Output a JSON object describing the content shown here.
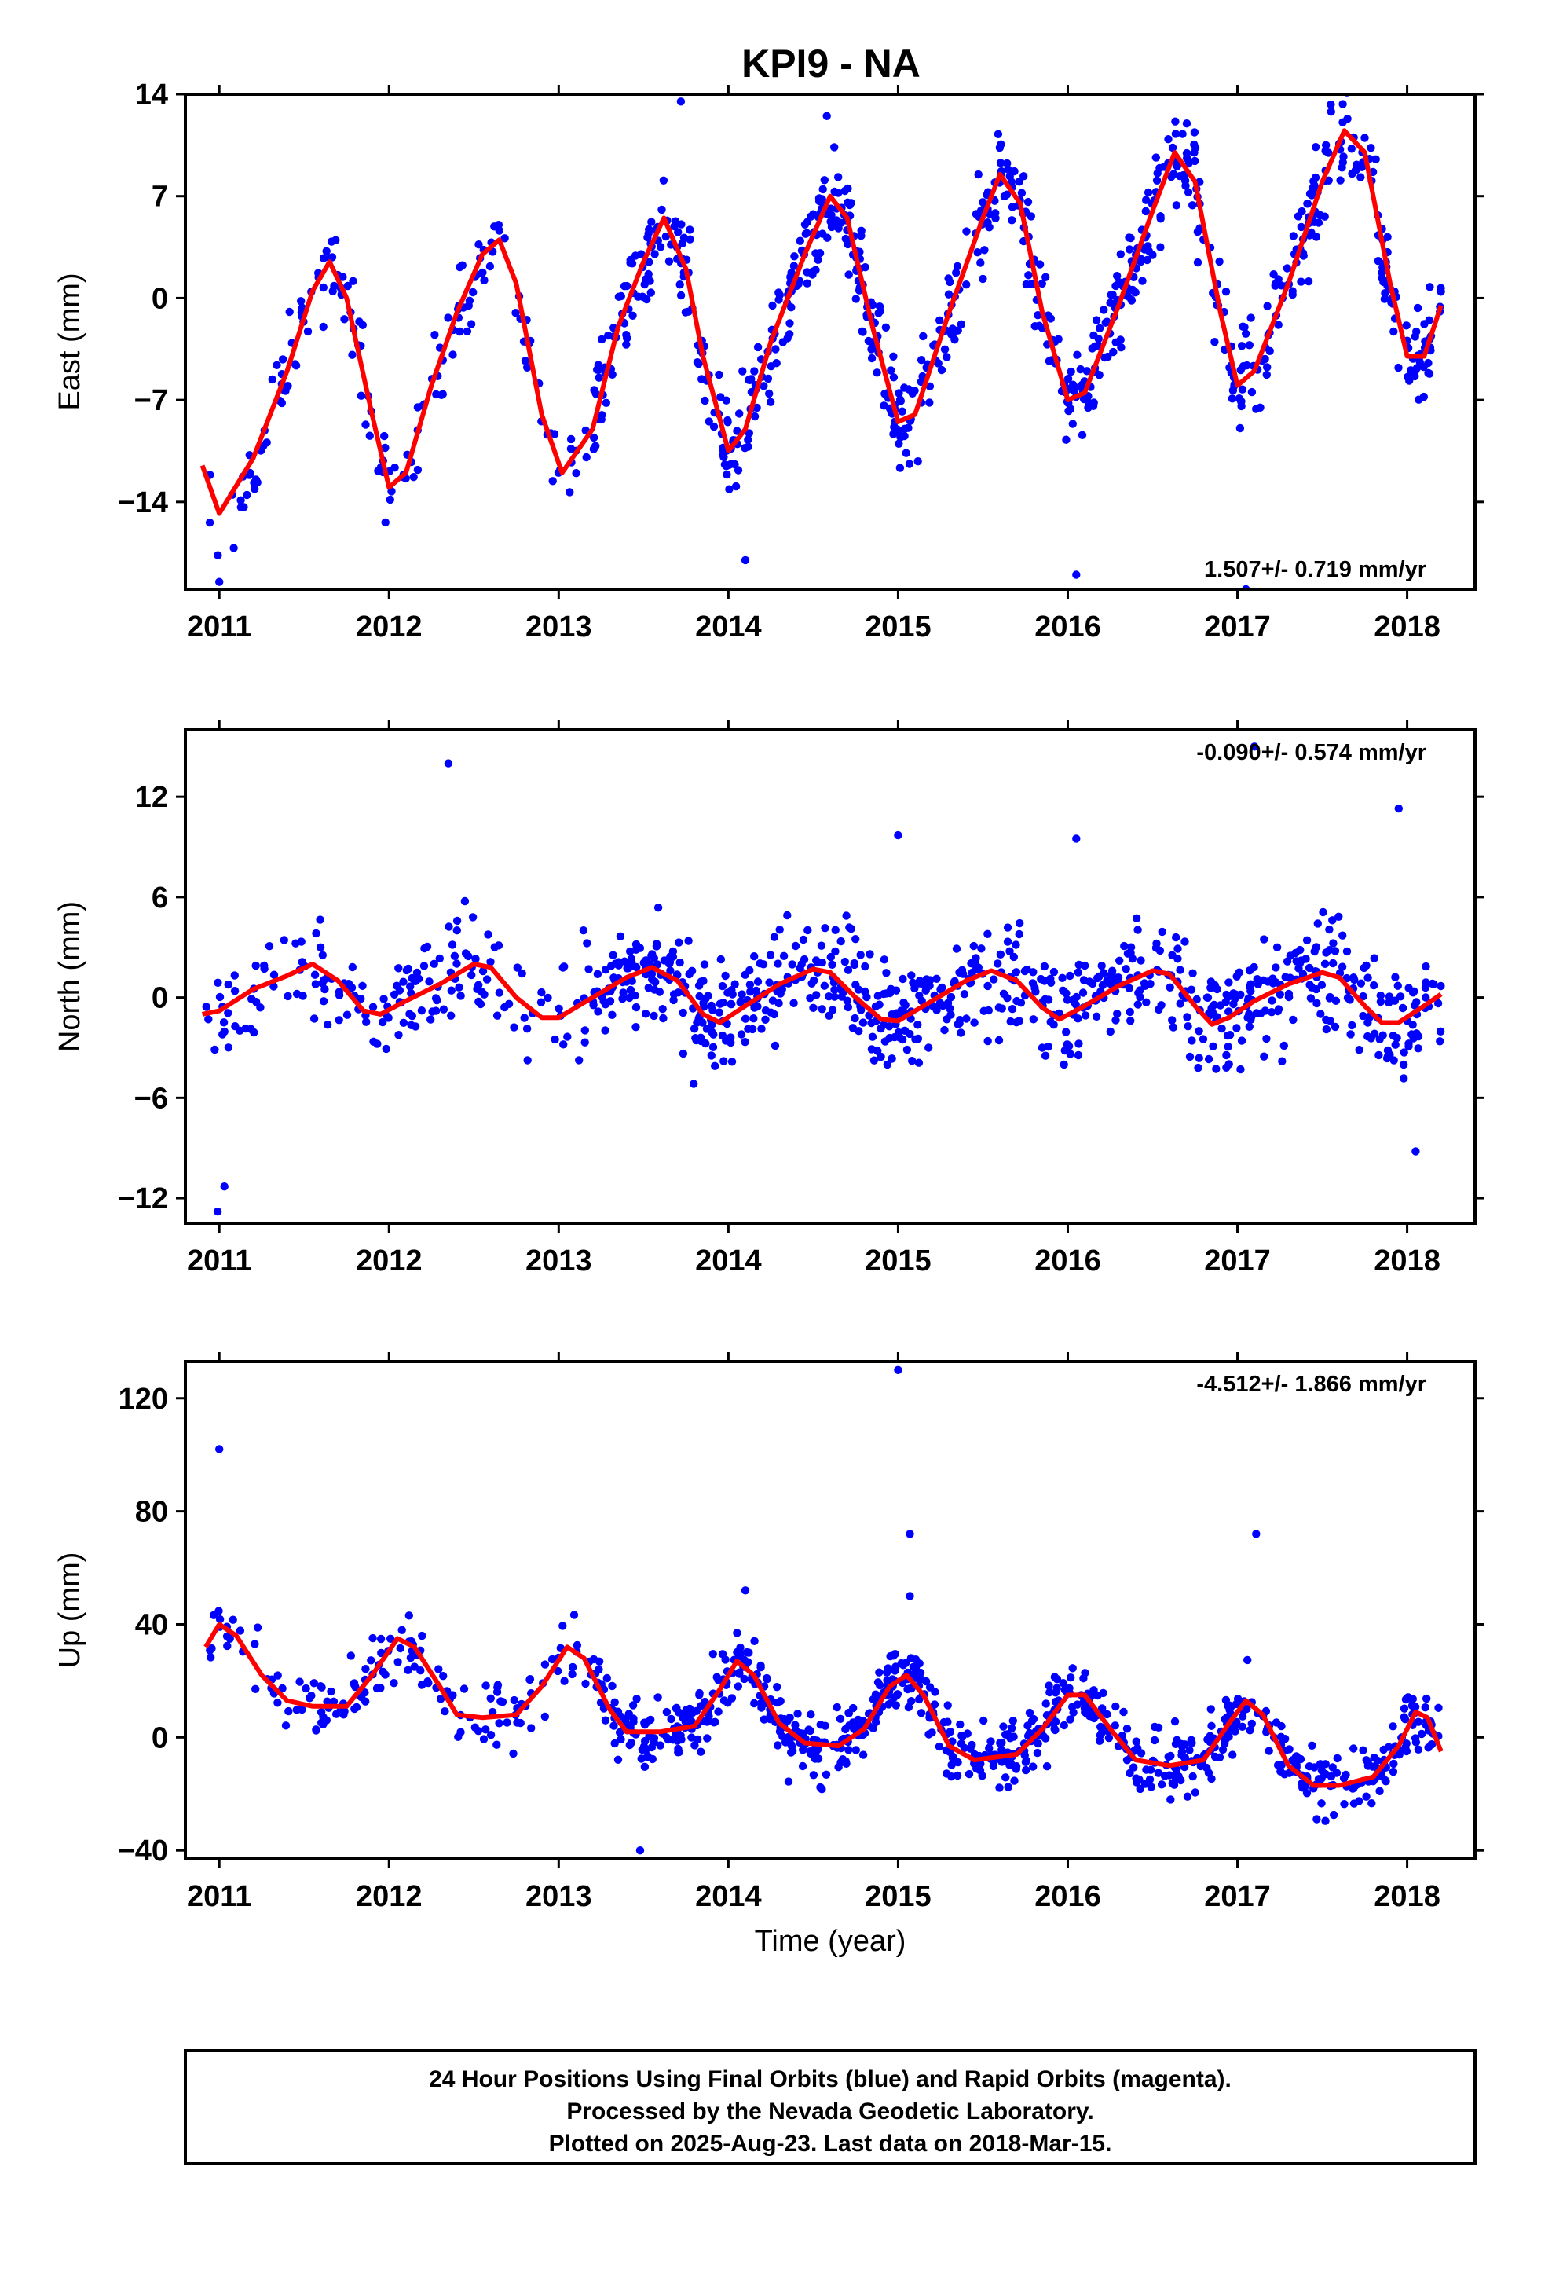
{
  "title": "KPI9 - NA",
  "caption": {
    "line1": "24 Hour Positions Using Final Orbits (blue) and Rapid Orbits (magenta).",
    "line2": "Processed by the Nevada Geodetic Laboratory.",
    "line3": "Plotted on 2025-Aug-23. Last data on 2018-Mar-15."
  },
  "colors": {
    "points": "#0000ff",
    "fit": "#ff0000",
    "frame": "#000000"
  },
  "chart_data": [
    {
      "type": "scatter",
      "component": "East",
      "ylabel": "East (mm)",
      "xlabel": "",
      "xlim": [
        2010.8,
        2018.4
      ],
      "ylim": [
        -20,
        14
      ],
      "xticks": [
        2011,
        2012,
        2013,
        2014,
        2015,
        2016,
        2017,
        2018
      ],
      "yticks": [
        -14,
        -7,
        0,
        7,
        14
      ],
      "ytick_labels": [
        "−14",
        "−7",
        "0",
        "7",
        "14"
      ],
      "rate_label": "1.507+/- 0.719 mm/yr",
      "rate_position": "bottom-right",
      "grid": false,
      "fit_curve": [
        [
          2010.9,
          -11.5
        ],
        [
          2011.0,
          -14.8
        ],
        [
          2011.2,
          -11
        ],
        [
          2011.4,
          -5
        ],
        [
          2011.55,
          0.5
        ],
        [
          2011.65,
          2.5
        ],
        [
          2011.75,
          0
        ],
        [
          2011.9,
          -8
        ],
        [
          2012.0,
          -13
        ],
        [
          2012.1,
          -12
        ],
        [
          2012.25,
          -6
        ],
        [
          2012.4,
          -1
        ],
        [
          2012.55,
          3
        ],
        [
          2012.65,
          4
        ],
        [
          2012.75,
          1
        ],
        [
          2012.9,
          -8
        ],
        [
          2013.02,
          -12
        ],
        [
          2013.2,
          -9
        ],
        [
          2013.35,
          -2
        ],
        [
          2013.5,
          2.5
        ],
        [
          2013.62,
          5.5
        ],
        [
          2013.75,
          2
        ],
        [
          2013.85,
          -4
        ],
        [
          2014.0,
          -10.5
        ],
        [
          2014.1,
          -9
        ],
        [
          2014.25,
          -3
        ],
        [
          2014.45,
          3
        ],
        [
          2014.6,
          7
        ],
        [
          2014.7,
          5.5
        ],
        [
          2014.85,
          -2
        ],
        [
          2015.0,
          -8.5
        ],
        [
          2015.1,
          -8
        ],
        [
          2015.3,
          -1
        ],
        [
          2015.5,
          5.5
        ],
        [
          2015.6,
          8.5
        ],
        [
          2015.72,
          6.5
        ],
        [
          2015.85,
          -1
        ],
        [
          2016.0,
          -7
        ],
        [
          2016.1,
          -6.5
        ],
        [
          2016.3,
          -0.5
        ],
        [
          2016.5,
          6
        ],
        [
          2016.63,
          10
        ],
        [
          2016.75,
          8
        ],
        [
          2016.9,
          -1
        ],
        [
          2017.0,
          -6
        ],
        [
          2017.1,
          -5
        ],
        [
          2017.3,
          1
        ],
        [
          2017.5,
          8
        ],
        [
          2017.63,
          11.5
        ],
        [
          2017.75,
          10
        ],
        [
          2017.9,
          1
        ],
        [
          2018.0,
          -4
        ],
        [
          2018.1,
          -4
        ],
        [
          2018.2,
          -0.5
        ]
      ],
      "points": {
        "x_start": 2010.92,
        "x_end": 2018.2,
        "count": 1150,
        "gaps": [
          [
            2011.1,
            2011.12
          ],
          [
            2012.85,
            2012.88
          ]
        ],
        "scatter_sd": 2.8,
        "outliers": [
          [
            2011.0,
            -19.5
          ],
          [
            2014.1,
            -18
          ],
          [
            2016.05,
            -19
          ],
          [
            2017.05,
            -20
          ],
          [
            2013.72,
            13.5
          ],
          [
            2014.58,
            12.5
          ],
          [
            2017.55,
            13.3
          ]
        ]
      }
    },
    {
      "type": "scatter",
      "component": "North",
      "ylabel": "North (mm)",
      "xlabel": "",
      "xlim": [
        2010.8,
        2018.4
      ],
      "ylim": [
        -13.5,
        16
      ],
      "xticks": [
        2011,
        2012,
        2013,
        2014,
        2015,
        2016,
        2017,
        2018
      ],
      "yticks": [
        -12,
        -6,
        0,
        6,
        12
      ],
      "ytick_labels": [
        "−12",
        "−6",
        "0",
        "6",
        "12"
      ],
      "rate_label": "-0.090+/- 0.574 mm/yr",
      "rate_position": "top-right",
      "grid": false,
      "fit_curve": [
        [
          2010.9,
          -1
        ],
        [
          2011.0,
          -0.8
        ],
        [
          2011.2,
          0.5
        ],
        [
          2011.4,
          1.3
        ],
        [
          2011.55,
          2
        ],
        [
          2011.7,
          1
        ],
        [
          2011.85,
          -0.8
        ],
        [
          2011.95,
          -1
        ],
        [
          2012.1,
          -0.2
        ],
        [
          2012.3,
          0.8
        ],
        [
          2012.5,
          2
        ],
        [
          2012.6,
          1.8
        ],
        [
          2012.75,
          0
        ],
        [
          2012.9,
          -1.2
        ],
        [
          2013.0,
          -1.2
        ],
        [
          2013.2,
          0
        ],
        [
          2013.4,
          1.2
        ],
        [
          2013.55,
          1.8
        ],
        [
          2013.7,
          1
        ],
        [
          2013.85,
          -1
        ],
        [
          2013.95,
          -1.5
        ],
        [
          2014.1,
          -0.5
        ],
        [
          2014.3,
          0.8
        ],
        [
          2014.5,
          1.7
        ],
        [
          2014.6,
          1.5
        ],
        [
          2014.75,
          0
        ],
        [
          2014.9,
          -1.3
        ],
        [
          2015.0,
          -1.4
        ],
        [
          2015.2,
          -0.2
        ],
        [
          2015.4,
          1
        ],
        [
          2015.55,
          1.6
        ],
        [
          2015.7,
          1
        ],
        [
          2015.85,
          -0.6
        ],
        [
          2015.95,
          -1.3
        ],
        [
          2016.1,
          -0.5
        ],
        [
          2016.3,
          0.7
        ],
        [
          2016.5,
          1.6
        ],
        [
          2016.6,
          1.4
        ],
        [
          2016.75,
          -0.5
        ],
        [
          2016.85,
          -1.6
        ],
        [
          2016.95,
          -1.2
        ],
        [
          2017.1,
          -0.2
        ],
        [
          2017.3,
          0.8
        ],
        [
          2017.5,
          1.5
        ],
        [
          2017.6,
          1.2
        ],
        [
          2017.75,
          -0.5
        ],
        [
          2017.85,
          -1.5
        ],
        [
          2017.95,
          -1.5
        ],
        [
          2018.1,
          -0.5
        ],
        [
          2018.2,
          0.2
        ]
      ],
      "points": {
        "x_start": 2010.92,
        "x_end": 2018.2,
        "count": 1150,
        "gaps": [
          [
            2011.1,
            2011.12
          ],
          [
            2012.85,
            2012.88
          ]
        ],
        "scatter_sd": 2.6,
        "outliers": [
          [
            2010.99,
            -12.8
          ],
          [
            2011.03,
            -11.3
          ],
          [
            2012.35,
            14
          ],
          [
            2017.1,
            15
          ],
          [
            2016.05,
            9.5
          ],
          [
            2015.0,
            9.7
          ],
          [
            2017.95,
            11.3
          ],
          [
            2018.05,
            -9.2
          ]
        ]
      }
    },
    {
      "type": "scatter",
      "component": "Up",
      "ylabel": "Up (mm)",
      "xlabel": "Time (year)",
      "xlim": [
        2010.8,
        2018.4
      ],
      "ylim": [
        -43,
        133
      ],
      "xticks": [
        2011,
        2012,
        2013,
        2014,
        2015,
        2016,
        2017,
        2018
      ],
      "yticks": [
        -40,
        0,
        40,
        80,
        120
      ],
      "ytick_labels": [
        "−40",
        "0",
        "40",
        "80",
        "120"
      ],
      "rate_label": "-4.512+/- 1.866 mm/yr",
      "rate_position": "top-right",
      "grid": false,
      "fit_curve": [
        [
          2010.92,
          32
        ],
        [
          2011.0,
          40
        ],
        [
          2011.1,
          36
        ],
        [
          2011.25,
          22
        ],
        [
          2011.4,
          13
        ],
        [
          2011.55,
          11
        ],
        [
          2011.75,
          11
        ],
        [
          2011.9,
          22
        ],
        [
          2012.05,
          35
        ],
        [
          2012.15,
          32
        ],
        [
          2012.3,
          18
        ],
        [
          2012.4,
          8
        ],
        [
          2012.55,
          7
        ],
        [
          2012.75,
          8
        ],
        [
          2012.9,
          18
        ],
        [
          2013.05,
          32
        ],
        [
          2013.15,
          28
        ],
        [
          2013.3,
          10
        ],
        [
          2013.4,
          2
        ],
        [
          2013.6,
          2
        ],
        [
          2013.8,
          4
        ],
        [
          2013.95,
          17
        ],
        [
          2014.05,
          27
        ],
        [
          2014.15,
          22
        ],
        [
          2014.3,
          5
        ],
        [
          2014.45,
          -2
        ],
        [
          2014.65,
          -3
        ],
        [
          2014.8,
          3
        ],
        [
          2014.95,
          18
        ],
        [
          2015.05,
          22
        ],
        [
          2015.15,
          15
        ],
        [
          2015.3,
          -3
        ],
        [
          2015.45,
          -8
        ],
        [
          2015.7,
          -6
        ],
        [
          2015.85,
          3
        ],
        [
          2016.0,
          15
        ],
        [
          2016.1,
          15
        ],
        [
          2016.25,
          3
        ],
        [
          2016.4,
          -8
        ],
        [
          2016.6,
          -10
        ],
        [
          2016.8,
          -8
        ],
        [
          2016.95,
          5
        ],
        [
          2017.05,
          13
        ],
        [
          2017.15,
          8
        ],
        [
          2017.3,
          -10
        ],
        [
          2017.45,
          -17
        ],
        [
          2017.6,
          -17
        ],
        [
          2017.8,
          -14
        ],
        [
          2017.95,
          -3
        ],
        [
          2018.05,
          9
        ],
        [
          2018.12,
          7
        ],
        [
          2018.2,
          -5
        ]
      ],
      "points": {
        "x_start": 2010.92,
        "x_end": 2018.2,
        "count": 1150,
        "gaps": [
          [
            2011.1,
            2011.12
          ],
          [
            2012.85,
            2012.88
          ]
        ],
        "scatter_sd": 9,
        "outliers": [
          [
            2011.0,
            102
          ],
          [
            2015.0,
            130
          ],
          [
            2015.07,
            72
          ],
          [
            2017.11,
            72
          ],
          [
            2015.07,
            50
          ],
          [
            2014.1,
            52
          ],
          [
            2013.48,
            -40
          ]
        ]
      }
    }
  ]
}
